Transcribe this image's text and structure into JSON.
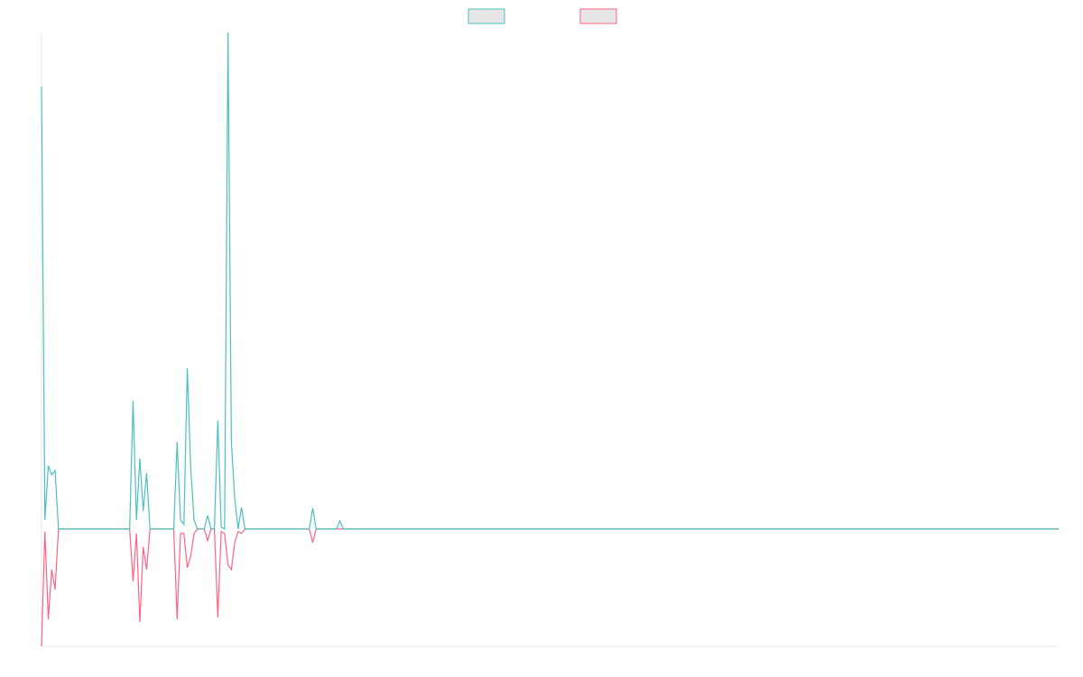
{
  "chart_data": {
    "type": "line",
    "x": [
      0,
      1,
      2,
      3,
      4,
      5,
      26,
      27,
      28,
      29,
      30,
      31,
      32,
      39,
      40,
      41,
      42,
      43,
      44,
      45,
      46,
      48,
      49,
      50,
      51,
      52,
      53,
      54,
      55,
      56,
      57,
      58,
      59,
      60,
      79,
      80,
      81,
      87,
      88,
      89,
      300
    ],
    "series": [
      {
        "color": "#4bc0c0",
        "values": [
          490,
          10,
          70,
          60,
          65,
          0,
          0,
          142,
          10,
          78,
          20,
          62,
          0,
          0,
          96,
          10,
          5,
          178,
          68,
          10,
          0,
          0,
          15,
          0,
          0,
          120,
          2,
          0,
          550,
          96,
          33,
          0,
          24,
          0,
          0,
          23,
          0,
          0,
          9,
          0,
          0
        ]
      },
      {
        "color": "#ff6384",
        "values": [
          -130,
          -3,
          -100,
          -45,
          -67,
          0,
          0,
          -58,
          -5,
          -103,
          -20,
          -45,
          0,
          0,
          -100,
          -5,
          -5,
          -43,
          -30,
          -5,
          0,
          0,
          -13,
          0,
          0,
          -98,
          -3,
          -5,
          -40,
          -45,
          -15,
          -3,
          -5,
          0,
          0,
          -15,
          0,
          0,
          0,
          0,
          0
        ]
      }
    ],
    "xlim": [
      0,
      300
    ],
    "ylim": [
      -130,
      550
    ],
    "legend": "top"
  }
}
